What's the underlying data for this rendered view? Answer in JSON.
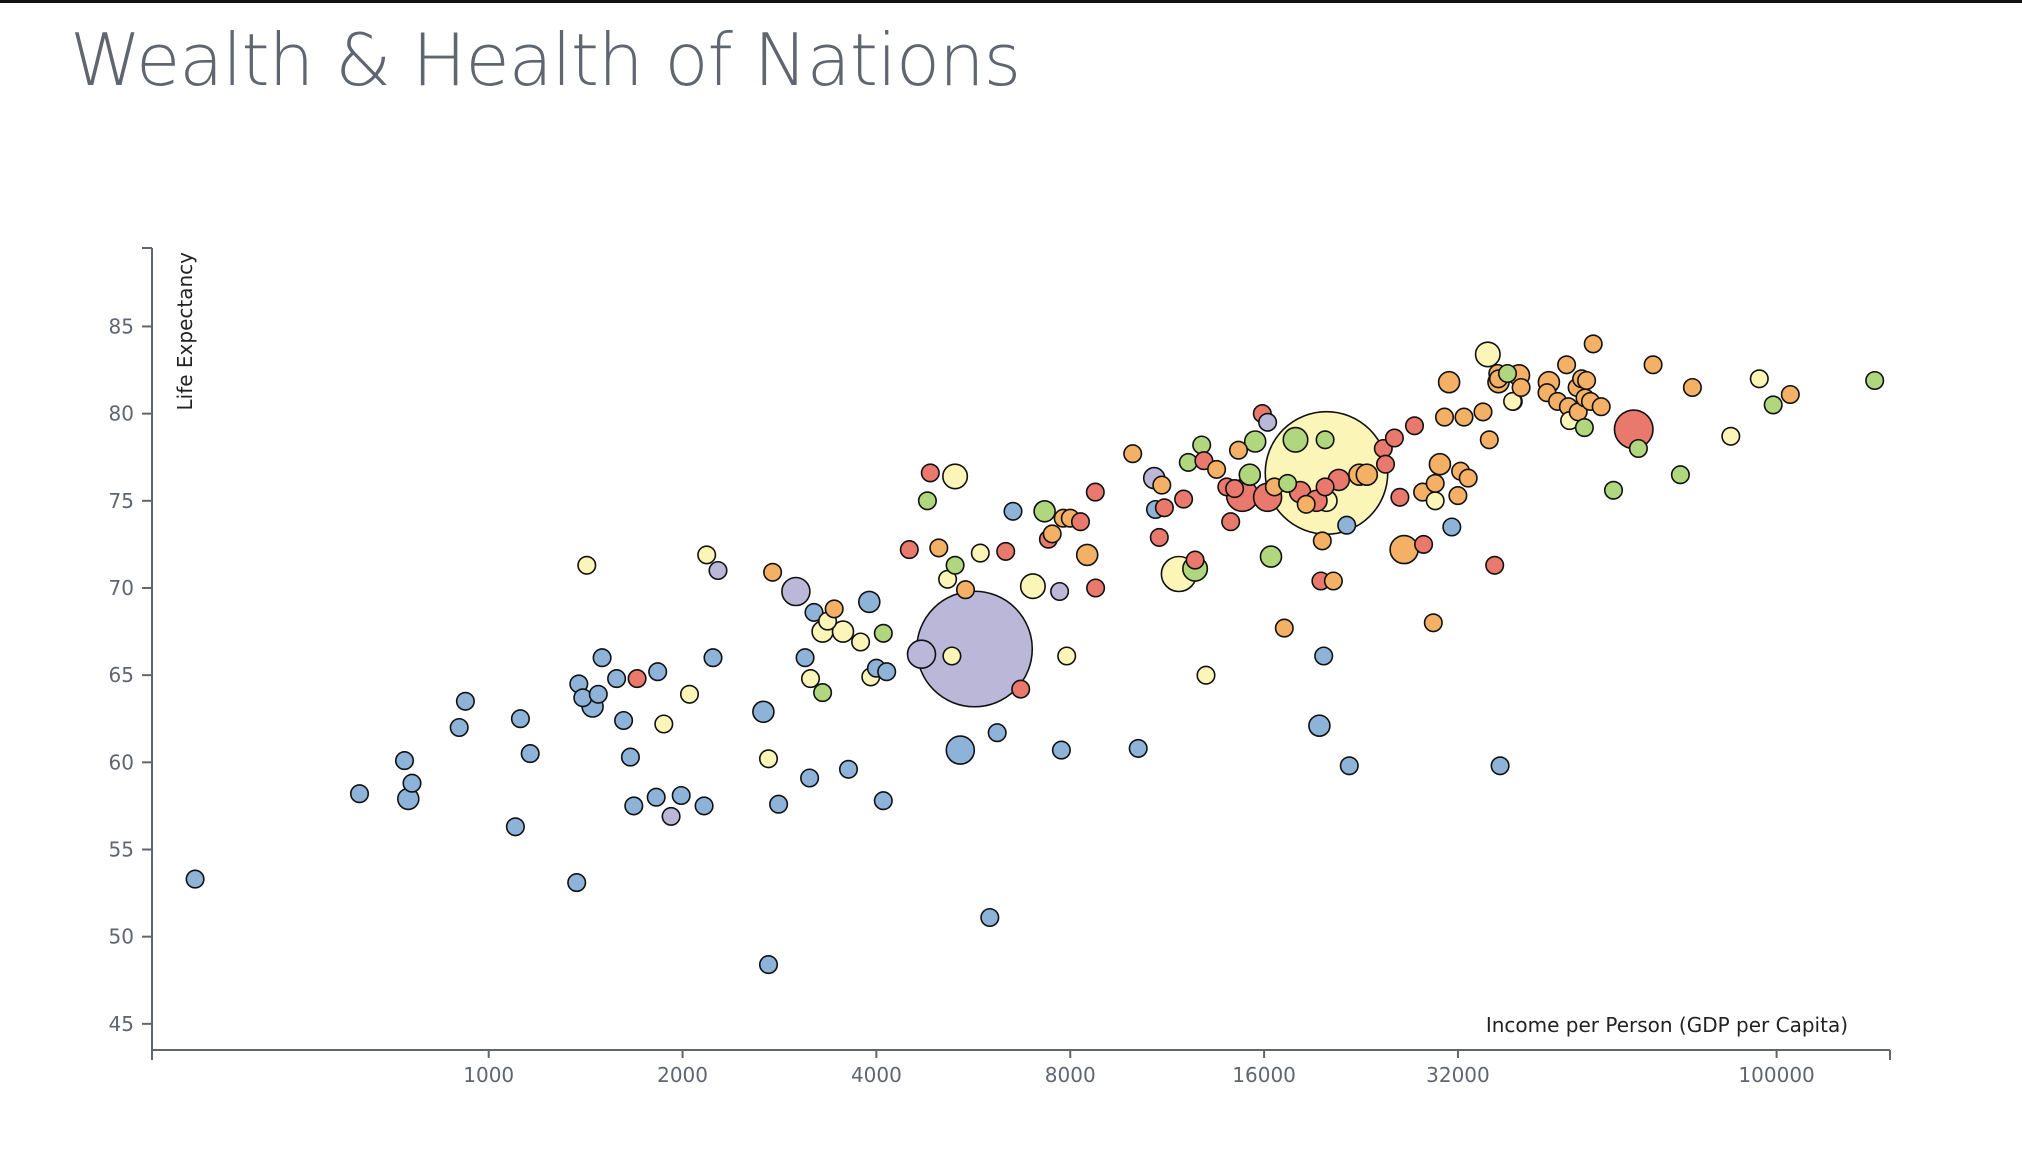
{
  "chart_data": {
    "type": "scatter",
    "title": "Wealth & Health of Nations",
    "xlabel": "Income per Person (GDP per Capita)",
    "ylabel": "Life Expectancy",
    "x_scale": "log",
    "xlim": [
      300,
      150000
    ],
    "ylim": [
      43.5,
      89.5
    ],
    "x_ticks": [
      "1000",
      "2000",
      "4000",
      "8000",
      "16000",
      "32000",
      "100000"
    ],
    "y_ticks": [
      "45",
      "50",
      "55",
      "60",
      "65",
      "70",
      "75",
      "80",
      "85"
    ],
    "grid": false,
    "colors": {
      "blue": "#8eb3d9",
      "purple": "#bbb7d9",
      "red": "#e8796c",
      "orange": "#f4b166",
      "yellow": "#fbf6b8",
      "green": "#b0d77e"
    },
    "points": [
      [
        5680,
        66.5,
        33,
        "purple"
      ],
      [
        20000,
        76.6,
        35,
        "yellow"
      ],
      [
        11800,
        70.8,
        10,
        "yellow"
      ],
      [
        4700,
        66.2,
        8,
        "purple"
      ],
      [
        3000,
        69.8,
        8,
        "purple"
      ],
      [
        5400,
        60.7,
        8,
        "blue"
      ],
      [
        14800,
        75.3,
        9,
        "red"
      ],
      [
        16200,
        75.2,
        8,
        "red"
      ],
      [
        35600,
        83.4,
        7,
        "yellow"
      ],
      [
        60000,
        79.1,
        11,
        "red"
      ],
      [
        26400,
        72.2,
        8,
        "orange"
      ],
      [
        5300,
        76.4,
        7,
        "yellow"
      ],
      [
        7000,
        70.1,
        7,
        "yellow"
      ],
      [
        12500,
        71.1,
        7,
        "green"
      ],
      [
        15500,
        78.4,
        6,
        "green"
      ],
      [
        19500,
        62.1,
        6,
        "blue"
      ],
      [
        750,
        57.9,
        6,
        "blue"
      ],
      [
        1450,
        63.2,
        6,
        "blue"
      ],
      [
        2670,
        62.9,
        6,
        "blue"
      ],
      [
        3900,
        69.2,
        6,
        "blue"
      ],
      [
        3300,
        67.5,
        6,
        "yellow"
      ],
      [
        3550,
        67.5,
        6,
        "yellow"
      ],
      [
        37000,
        81.8,
        6,
        "orange"
      ],
      [
        31000,
        81.8,
        6,
        "orange"
      ],
      [
        20000,
        75.0,
        6,
        "yellow"
      ],
      [
        350,
        53.3,
        5,
        "blue"
      ],
      [
        630,
        58.2,
        5,
        "blue"
      ],
      [
        740,
        60.1,
        5,
        "blue"
      ],
      [
        760,
        58.8,
        5,
        "blue"
      ],
      [
        900,
        62.0,
        5,
        "blue"
      ],
      [
        920,
        63.5,
        5,
        "blue"
      ],
      [
        1100,
        56.3,
        5,
        "blue"
      ],
      [
        1120,
        62.5,
        5,
        "blue"
      ],
      [
        1160,
        60.5,
        5,
        "blue"
      ],
      [
        1370,
        53.1,
        5,
        "blue"
      ],
      [
        1380,
        64.5,
        5,
        "blue"
      ],
      [
        1400,
        63.7,
        5,
        "blue"
      ],
      [
        1420,
        71.3,
        5,
        "yellow"
      ],
      [
        1480,
        63.9,
        5,
        "blue"
      ],
      [
        1500,
        66.0,
        5,
        "blue"
      ],
      [
        1580,
        64.8,
        5,
        "blue"
      ],
      [
        1620,
        62.4,
        5,
        "blue"
      ],
      [
        1660,
        60.3,
        5,
        "blue"
      ],
      [
        1680,
        57.5,
        5,
        "blue"
      ],
      [
        1700,
        64.8,
        5,
        "red"
      ],
      [
        1820,
        58.0,
        5,
        "blue"
      ],
      [
        1830,
        65.2,
        5,
        "blue"
      ],
      [
        1870,
        62.2,
        5,
        "yellow"
      ],
      [
        1920,
        56.9,
        5,
        "purple"
      ],
      [
        1990,
        58.1,
        5,
        "blue"
      ],
      [
        2050,
        63.9,
        5,
        "yellow"
      ],
      [
        2160,
        57.5,
        5,
        "blue"
      ],
      [
        2180,
        71.9,
        5,
        "yellow"
      ],
      [
        2230,
        66.0,
        5,
        "blue"
      ],
      [
        2270,
        71.0,
        5,
        "purple"
      ],
      [
        2720,
        48.4,
        5,
        "blue"
      ],
      [
        2720,
        60.2,
        5,
        "yellow"
      ],
      [
        2760,
        70.9,
        5,
        "orange"
      ],
      [
        2820,
        57.6,
        5,
        "blue"
      ],
      [
        3100,
        66.0,
        5,
        "blue"
      ],
      [
        3150,
        59.1,
        5,
        "blue"
      ],
      [
        3160,
        64.8,
        5,
        "yellow"
      ],
      [
        3200,
        68.6,
        5,
        "blue"
      ],
      [
        3300,
        64.0,
        5,
        "green"
      ],
      [
        3360,
        68.1,
        5,
        "yellow"
      ],
      [
        3440,
        68.8,
        5,
        "orange"
      ],
      [
        3620,
        59.6,
        5,
        "blue"
      ],
      [
        3780,
        66.9,
        5,
        "yellow"
      ],
      [
        3920,
        64.9,
        5,
        "yellow"
      ],
      [
        4000,
        65.4,
        5,
        "blue"
      ],
      [
        4100,
        57.8,
        5,
        "blue"
      ],
      [
        4100,
        67.4,
        5,
        "green"
      ],
      [
        4150,
        65.2,
        5,
        "blue"
      ],
      [
        4500,
        72.2,
        5,
        "red"
      ],
      [
        4800,
        75.0,
        5,
        "green"
      ],
      [
        4850,
        76.6,
        5,
        "red"
      ],
      [
        5000,
        72.3,
        5,
        "orange"
      ],
      [
        5160,
        70.5,
        5,
        "yellow"
      ],
      [
        5240,
        66.1,
        5,
        "yellow"
      ],
      [
        5300,
        71.3,
        5,
        "green"
      ],
      [
        5500,
        69.9,
        5,
        "orange"
      ],
      [
        5800,
        72.0,
        5,
        "yellow"
      ],
      [
        6000,
        51.1,
        5,
        "blue"
      ],
      [
        6160,
        61.7,
        5,
        "blue"
      ],
      [
        6350,
        72.1,
        5,
        "red"
      ],
      [
        6520,
        74.4,
        5,
        "blue"
      ],
      [
        6700,
        64.2,
        5,
        "red"
      ],
      [
        7300,
        74.4,
        6,
        "green"
      ],
      [
        7400,
        72.8,
        5,
        "red"
      ],
      [
        7500,
        73.1,
        5,
        "orange"
      ],
      [
        7700,
        69.8,
        5,
        "purple"
      ],
      [
        7750,
        60.7,
        5,
        "blue"
      ],
      [
        7800,
        74.0,
        5,
        "orange"
      ],
      [
        7900,
        66.1,
        5,
        "yellow"
      ],
      [
        8000,
        74.0,
        5,
        "orange"
      ],
      [
        8300,
        73.8,
        5,
        "red"
      ],
      [
        8500,
        71.9,
        6,
        "orange"
      ],
      [
        8750,
        75.5,
        5,
        "red"
      ],
      [
        8760,
        70.0,
        5,
        "red"
      ],
      [
        10000,
        77.7,
        5,
        "orange"
      ],
      [
        10200,
        60.8,
        5,
        "blue"
      ],
      [
        10800,
        76.3,
        6,
        "purple"
      ],
      [
        10850,
        74.5,
        5,
        "blue"
      ],
      [
        11000,
        72.9,
        5,
        "red"
      ],
      [
        11100,
        75.9,
        5,
        "orange"
      ],
      [
        11200,
        74.6,
        5,
        "red"
      ],
      [
        12000,
        75.1,
        5,
        "red"
      ],
      [
        12200,
        77.2,
        5,
        "green"
      ],
      [
        12500,
        71.6,
        5,
        "red"
      ],
      [
        12800,
        78.2,
        5,
        "green"
      ],
      [
        12900,
        77.3,
        5,
        "red"
      ],
      [
        13000,
        65.0,
        5,
        "yellow"
      ],
      [
        13500,
        76.8,
        5,
        "orange"
      ],
      [
        14000,
        75.8,
        5,
        "red"
      ],
      [
        14200,
        73.8,
        5,
        "red"
      ],
      [
        14400,
        75.7,
        5,
        "red"
      ],
      [
        14600,
        77.9,
        5,
        "orange"
      ],
      [
        15200,
        76.5,
        6,
        "green"
      ],
      [
        15900,
        80.0,
        5,
        "red"
      ],
      [
        16200,
        79.5,
        5,
        "purple"
      ],
      [
        16400,
        71.8,
        6,
        "green"
      ],
      [
        16600,
        75.8,
        5,
        "orange"
      ],
      [
        17200,
        67.7,
        5,
        "orange"
      ],
      [
        17400,
        76.0,
        5,
        "green"
      ],
      [
        17900,
        78.5,
        7,
        "green"
      ],
      [
        18200,
        75.5,
        6,
        "red"
      ],
      [
        18600,
        74.8,
        5,
        "orange"
      ],
      [
        19300,
        75.0,
        6,
        "red"
      ],
      [
        19600,
        70.4,
        5,
        "red"
      ],
      [
        19700,
        72.7,
        5,
        "orange"
      ],
      [
        19800,
        66.1,
        5,
        "blue"
      ],
      [
        19900,
        75.8,
        5,
        "red"
      ],
      [
        19900,
        78.5,
        5,
        "green"
      ],
      [
        20500,
        70.4,
        5,
        "orange"
      ],
      [
        20900,
        76.2,
        6,
        "red"
      ],
      [
        21500,
        73.6,
        5,
        "blue"
      ],
      [
        21700,
        59.8,
        5,
        "blue"
      ],
      [
        22500,
        76.5,
        6,
        "orange"
      ],
      [
        23100,
        76.5,
        6,
        "orange"
      ],
      [
        24500,
        78.0,
        5,
        "red"
      ],
      [
        24700,
        77.1,
        5,
        "red"
      ],
      [
        25500,
        78.6,
        5,
        "red"
      ],
      [
        26000,
        75.2,
        5,
        "red"
      ],
      [
        27400,
        79.3,
        5,
        "red"
      ],
      [
        28200,
        75.5,
        5,
        "orange"
      ],
      [
        28300,
        72.5,
        5,
        "red"
      ],
      [
        29300,
        68.0,
        5,
        "orange"
      ],
      [
        29500,
        75.0,
        5,
        "yellow"
      ],
      [
        29500,
        76.0,
        5,
        "orange"
      ],
      [
        30000,
        77.1,
        6,
        "orange"
      ],
      [
        30500,
        79.8,
        5,
        "orange"
      ],
      [
        31300,
        73.5,
        5,
        "blue"
      ],
      [
        32000,
        75.3,
        5,
        "orange"
      ],
      [
        32300,
        76.7,
        5,
        "orange"
      ],
      [
        32700,
        79.8,
        5,
        "orange"
      ],
      [
        33200,
        76.3,
        5,
        "orange"
      ],
      [
        35000,
        80.1,
        5,
        "orange"
      ],
      [
        35800,
        78.5,
        5,
        "orange"
      ],
      [
        36500,
        71.3,
        5,
        "red"
      ],
      [
        36900,
        82.3,
        5,
        "orange"
      ],
      [
        37000,
        82.0,
        5,
        "orange"
      ],
      [
        37200,
        59.8,
        5,
        "blue"
      ],
      [
        38200,
        82.3,
        5,
        "green"
      ],
      [
        39000,
        80.7,
        5,
        "yellow"
      ],
      [
        38900,
        80.7,
        5,
        "yellow"
      ],
      [
        39800,
        82.2,
        6,
        "orange"
      ],
      [
        40100,
        81.5,
        5,
        "orange"
      ],
      [
        44300,
        81.8,
        6,
        "orange"
      ],
      [
        44000,
        81.2,
        5,
        "orange"
      ],
      [
        45700,
        80.7,
        5,
        "orange"
      ],
      [
        47200,
        82.8,
        5,
        "orange"
      ],
      [
        47500,
        80.4,
        5,
        "orange"
      ],
      [
        47700,
        79.6,
        5,
        "yellow"
      ],
      [
        49000,
        81.5,
        5,
        "orange"
      ],
      [
        49200,
        80.1,
        5,
        "orange"
      ],
      [
        49800,
        82.0,
        5,
        "orange"
      ],
      [
        50300,
        79.2,
        5,
        "green"
      ],
      [
        50400,
        80.9,
        5,
        "orange"
      ],
      [
        50700,
        81.9,
        5,
        "orange"
      ],
      [
        51400,
        80.7,
        5,
        "orange"
      ],
      [
        51900,
        84.0,
        5,
        "orange"
      ],
      [
        53400,
        80.4,
        5,
        "orange"
      ],
      [
        55800,
        75.6,
        5,
        "green"
      ],
      [
        61000,
        78.0,
        5,
        "green"
      ],
      [
        64300,
        82.8,
        5,
        "orange"
      ],
      [
        70900,
        76.5,
        5,
        "green"
      ],
      [
        74000,
        81.5,
        5,
        "orange"
      ],
      [
        84900,
        78.7,
        5,
        "yellow"
      ],
      [
        94000,
        82.0,
        5,
        "yellow"
      ],
      [
        98800,
        80.5,
        5,
        "green"
      ],
      [
        105000,
        81.1,
        5,
        "orange"
      ],
      [
        142000,
        81.9,
        5,
        "green"
      ]
    ]
  }
}
